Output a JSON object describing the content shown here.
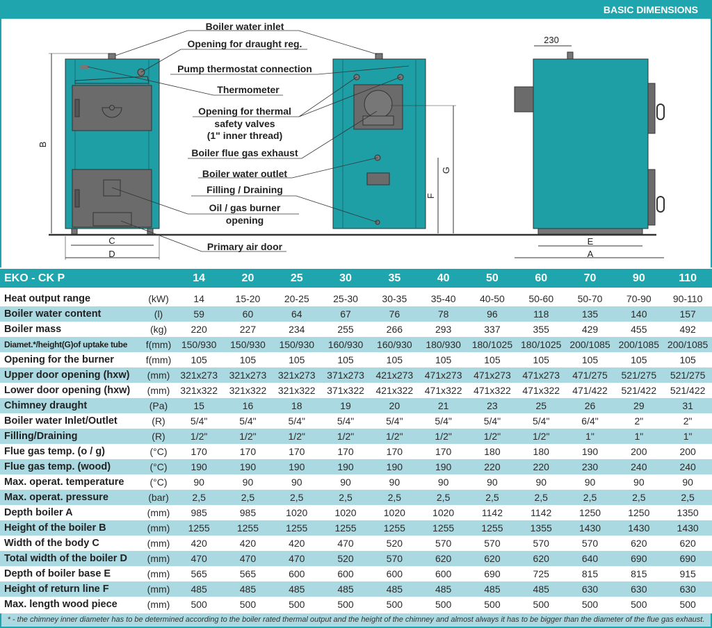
{
  "header": {
    "title": "BASIC DIMENSIONS"
  },
  "colors": {
    "accent": "#1fa5ae",
    "row_alt": "#abd9e1",
    "boiler_body": "#1e9ea5",
    "door": "#6b6b6b"
  },
  "diagram": {
    "labels": {
      "water_inlet": "Boiler water inlet",
      "draught_reg": "Opening for draught reg.",
      "pump_thermostat": "Pump thermostat connection",
      "thermometer": "Thermometer",
      "safety_valves_1": "Opening for thermal",
      "safety_valves_2": "safety valves",
      "safety_valves_3": "(1\" inner thread)",
      "flue_exhaust": "Boiler flue gas exhaust",
      "water_outlet": "Boiler water outlet",
      "filling": "Filling / Draining",
      "burner_1": "Oil / gas burner",
      "burner_2": "opening",
      "primary_air": "Primary air door"
    },
    "dims": {
      "A": "A",
      "B": "B",
      "C": "C",
      "D": "D",
      "E": "E",
      "F": "F",
      "G": "G",
      "top": "230"
    }
  },
  "table": {
    "model": "EKO - CK P",
    "models": [
      "14",
      "20",
      "25",
      "30",
      "35",
      "40",
      "50",
      "60",
      "70",
      "90",
      "110"
    ],
    "rows": [
      {
        "label": "Heat output range",
        "unit": "(kW)",
        "values": [
          "14",
          "15-20",
          "20-25",
          "25-30",
          "30-35",
          "35-40",
          "40-50",
          "50-60",
          "50-70",
          "70-90",
          "90-110"
        ]
      },
      {
        "label": "Boiler water content",
        "unit": "(l)",
        "values": [
          "59",
          "60",
          "64",
          "67",
          "76",
          "78",
          "96",
          "118",
          "135",
          "140",
          "157"
        ]
      },
      {
        "label": "Boiler mass",
        "unit": "(kg)",
        "values": [
          "220",
          "227",
          "234",
          "255",
          "266",
          "293",
          "337",
          "355",
          "429",
          "455",
          "492"
        ]
      },
      {
        "label": "Diamet.*/height(G)of uptake tube",
        "unit": "f(mm)",
        "values": [
          "150/930",
          "150/930",
          "150/930",
          "160/930",
          "160/930",
          "180/930",
          "180/1025",
          "180/1025",
          "200/1085",
          "200/1085",
          "200/1085"
        ]
      },
      {
        "label": "Opening for the burner",
        "unit": "f(mm)",
        "values": [
          "105",
          "105",
          "105",
          "105",
          "105",
          "105",
          "105",
          "105",
          "105",
          "105",
          "105"
        ]
      },
      {
        "label": "Upper door opening (hxw)",
        "unit": "(mm)",
        "values": [
          "321x273",
          "321x273",
          "321x273",
          "371x273",
          "421x273",
          "471x273",
          "471x273",
          "471x273",
          "471/275",
          "521/275",
          "521/275"
        ]
      },
      {
        "label": "Lower door opening (hxw)",
        "unit": "(mm)",
        "values": [
          "321x322",
          "321x322",
          "321x322",
          "371x322",
          "421x322",
          "471x322",
          "471x322",
          "471x322",
          "471/422",
          "521/422",
          "521/422"
        ]
      },
      {
        "label": "Chimney draught",
        "unit": "(Pa)",
        "values": [
          "15",
          "16",
          "18",
          "19",
          "20",
          "21",
          "23",
          "25",
          "26",
          "29",
          "31"
        ]
      },
      {
        "label": "Boiler water Inlet/Outlet",
        "unit": "(R)",
        "values": [
          "5/4\"",
          "5/4\"",
          "5/4\"",
          "5/4\"",
          "5/4\"",
          "5/4\"",
          "5/4\"",
          "5/4\"",
          "6/4\"",
          "2\"",
          "2\""
        ]
      },
      {
        "label": "Filling/Draining",
        "unit": "(R)",
        "values": [
          "1/2\"",
          "1/2\"",
          "1/2\"",
          "1/2\"",
          "1/2\"",
          "1/2\"",
          "1/2\"",
          "1/2\"",
          "1\"",
          "1\"",
          "1\""
        ]
      },
      {
        "label": "Flue gas temp. (o / g)",
        "unit": "(°C)",
        "values": [
          "170",
          "170",
          "170",
          "170",
          "170",
          "170",
          "180",
          "180",
          "190",
          "200",
          "200"
        ]
      },
      {
        "label": "Flue gas temp. (wood)",
        "unit": "(°C)",
        "values": [
          "190",
          "190",
          "190",
          "190",
          "190",
          "190",
          "220",
          "220",
          "230",
          "240",
          "240"
        ]
      },
      {
        "label": "Max. operat. temperature",
        "unit": "(°C)",
        "values": [
          "90",
          "90",
          "90",
          "90",
          "90",
          "90",
          "90",
          "90",
          "90",
          "90",
          "90"
        ]
      },
      {
        "label": "Max. operat. pressure",
        "unit": "(bar)",
        "values": [
          "2,5",
          "2,5",
          "2,5",
          "2,5",
          "2,5",
          "2,5",
          "2,5",
          "2,5",
          "2,5",
          "2,5",
          "2,5"
        ]
      },
      {
        "label": "Depth boiler A",
        "unit": "(mm)",
        "values": [
          "985",
          "985",
          "1020",
          "1020",
          "1020",
          "1020",
          "1142",
          "1142",
          "1250",
          "1250",
          "1350"
        ]
      },
      {
        "label": "Height of the boiler B",
        "unit": "(mm)",
        "values": [
          "1255",
          "1255",
          "1255",
          "1255",
          "1255",
          "1255",
          "1255",
          "1355",
          "1430",
          "1430",
          "1430"
        ]
      },
      {
        "label": "Width of the body C",
        "unit": "(mm)",
        "values": [
          "420",
          "420",
          "420",
          "470",
          "520",
          "570",
          "570",
          "570",
          "570",
          "620",
          "620"
        ]
      },
      {
        "label": "Total width of the boiler D",
        "unit": "(mm)",
        "values": [
          "470",
          "470",
          "470",
          "520",
          "570",
          "620",
          "620",
          "620",
          "640",
          "690",
          "690"
        ]
      },
      {
        "label": "Depth of boiler base  E",
        "unit": "(mm)",
        "values": [
          "565",
          "565",
          "600",
          "600",
          "600",
          "600",
          "690",
          "725",
          "815",
          "815",
          "915"
        ]
      },
      {
        "label": "Height of return line F",
        "unit": "(mm)",
        "values": [
          "485",
          "485",
          "485",
          "485",
          "485",
          "485",
          "485",
          "485",
          "630",
          "630",
          "630"
        ]
      },
      {
        "label": "Max. length wood piece",
        "unit": "(mm)",
        "values": [
          "500",
          "500",
          "500",
          "500",
          "500",
          "500",
          "500",
          "500",
          "500",
          "500",
          "500"
        ]
      }
    ],
    "footnote": "* - the chimney inner diameter has to be determined according to the boiler rated thermal output and the height of the chimney and almost always it has to be bigger than the diameter of the flue gas exhaust."
  }
}
